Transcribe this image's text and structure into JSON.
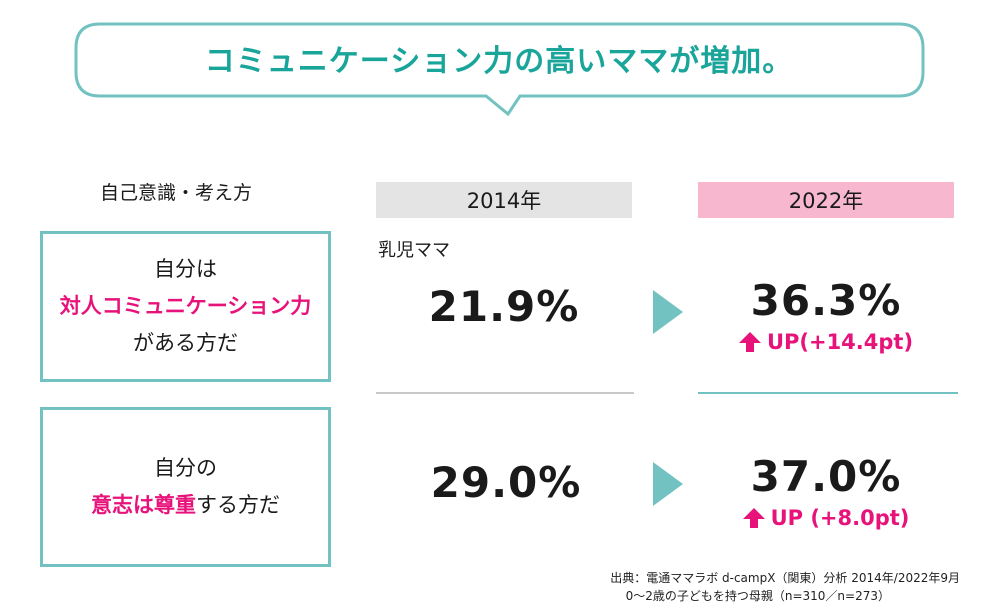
{
  "title": "コミュニケーション力の高いママが増加。",
  "section_label": "自己意識・考え方",
  "years": {
    "old": "2014年",
    "new": "2022年"
  },
  "subgroup": "乳児ママ",
  "questions": [
    {
      "line1": "自分は",
      "highlight": "対人コミュニケーション力",
      "suffix": "",
      "line3": "がある方だ"
    },
    {
      "line1": "自分の",
      "highlight": "意志は尊重",
      "suffix": "する方だ",
      "line3": ""
    }
  ],
  "rows": [
    {
      "value_2014": "21.9%",
      "value_2022": "36.3%",
      "delta": "UP(+14.4pt)"
    },
    {
      "value_2014": "29.0%",
      "value_2022": "37.0%",
      "delta": "UP (+8.0pt)"
    }
  ],
  "source": {
    "line1": "出典：電通ママラボ d-campX（関東）分析 2014年/2022年9月",
    "line2": "0〜2歳の子どもを持つ母親（n=310／n=273）"
  },
  "colors": {
    "teal": "#1aa59a",
    "pink": "#e8137a",
    "box_border": "#72c2c2",
    "header_2014": "#e4e4e4",
    "header_2022": "#f7b7cf"
  },
  "chart_data": {
    "type": "table",
    "title": "コミュニケーション力の高いママが増加。",
    "columns": [
      "2014年",
      "2022年"
    ],
    "rows": [
      {
        "label": "自分は対人コミュニケーション力がある方だ",
        "values": [
          21.9,
          36.3
        ],
        "change_pt": 14.4
      },
      {
        "label": "自分の意志は尊重する方だ",
        "values": [
          29.0,
          37.0
        ],
        "change_pt": 8.0
      }
    ],
    "unit": "%"
  }
}
